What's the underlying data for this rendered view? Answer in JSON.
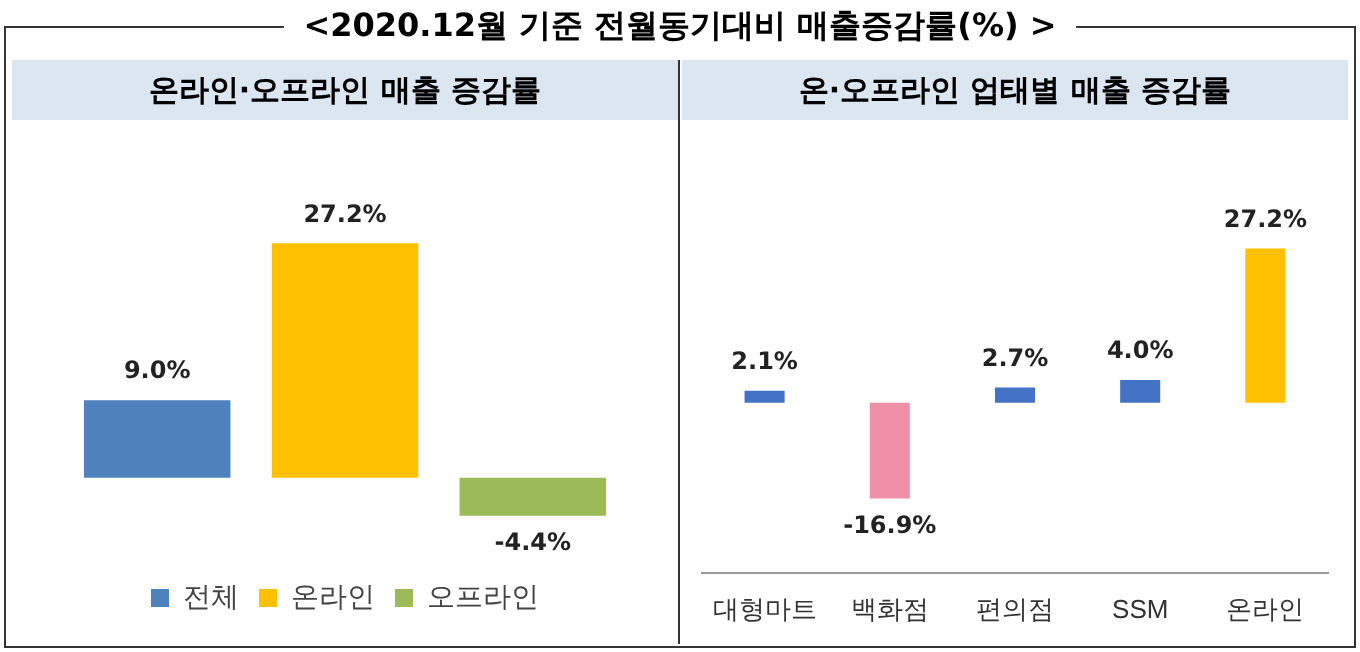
{
  "chart_data": [
    {
      "type": "bar",
      "title": "<2020.12월 기준 전월동기대비 매출증감률(%) >",
      "subtitle": "온라인·오프라인 매출 증감률",
      "categories": [
        null
      ],
      "series": [
        {
          "name": "전체",
          "color": "#4f81bd",
          "values": [
            9.0
          ],
          "value_labels": [
            "9.0%"
          ]
        },
        {
          "name": "온라인",
          "color": "#ffc000",
          "values": [
            27.2
          ],
          "value_labels": [
            "27.2%"
          ]
        },
        {
          "name": "오프라인",
          "color": "#9bbb59",
          "values": [
            -4.4
          ],
          "value_labels": [
            "-4.4%"
          ]
        }
      ],
      "legend": "bottom",
      "tick_labels": false,
      "grid": false
    },
    {
      "type": "bar",
      "title": "온·오프라인 업태별 매출 증감률",
      "categories": [
        "대형마트",
        "백화점",
        "편의점",
        "SSM",
        "온라인"
      ],
      "values": [
        2.1,
        -16.9,
        2.7,
        4.0,
        27.2
      ],
      "value_labels": [
        "2.1%",
        "-16.9%",
        "2.7%",
        "4.0%",
        "27.2%"
      ],
      "colors": [
        "#4472c4",
        "#f090a8",
        "#4472c4",
        "#4472c4",
        "#ffc000"
      ],
      "tick_labels": "x",
      "grid": false
    }
  ]
}
